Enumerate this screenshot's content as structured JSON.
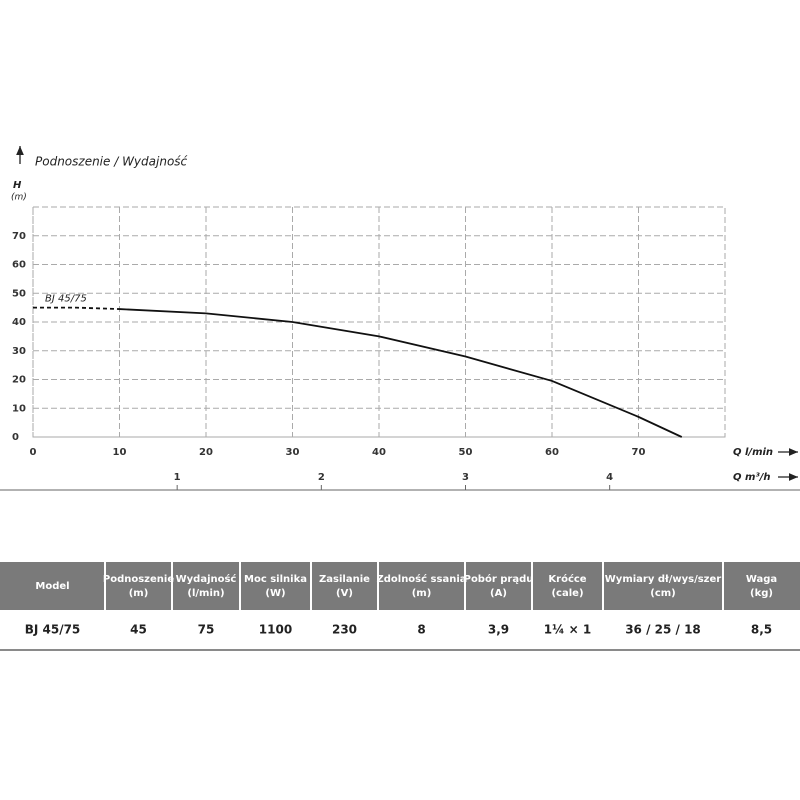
{
  "chart_data": {
    "type": "line",
    "title": "Podnoszenie / Wydajność",
    "y_label": [
      "H",
      "(m)"
    ],
    "x_label": "Q l/min",
    "x2_label": "Q m³/h",
    "xlim": [
      0,
      80
    ],
    "xticks": [
      0,
      10,
      20,
      30,
      40,
      50,
      60,
      70
    ],
    "ylim": [
      0,
      80
    ],
    "yticks": [
      0,
      10,
      20,
      30,
      40,
      50,
      60,
      70
    ],
    "x2lim": [
      0,
      4.8
    ],
    "x2ticks": [
      1,
      2,
      3,
      4
    ],
    "grid": true,
    "series": [
      {
        "name": "BJ 45/75",
        "color": "#111111",
        "dashed": true,
        "x": [
          0,
          5,
          10
        ],
        "values": [
          45,
          45,
          44.5
        ]
      },
      {
        "color": "#111111",
        "x": [
          10,
          20,
          30,
          40,
          50,
          60,
          70,
          75
        ],
        "values": [
          44.5,
          43,
          40,
          35,
          28,
          19.5,
          7,
          0
        ]
      }
    ]
  },
  "table": {
    "header": [
      [
        "Model"
      ],
      [
        "Podnoszenie",
        "(m)"
      ],
      [
        "Wydajność",
        "(l/min)"
      ],
      [
        "Moc silnika",
        "(W)"
      ],
      [
        "Zasilanie",
        "(V)"
      ],
      [
        "Zdolność ssania",
        "(m)"
      ],
      [
        "Pobór prądu",
        "(A)"
      ],
      [
        "Króćce",
        "(cale)"
      ],
      [
        "Wymiary dł/wys/szer",
        "(cm)"
      ],
      [
        "Waga",
        "(kg)"
      ]
    ],
    "rows": [
      [
        "BJ 45/75",
        "45",
        "75",
        "1100",
        "230",
        "8",
        "3,9",
        "1¼ × 1",
        "36 / 25 / 18",
        "8,5"
      ]
    ]
  }
}
